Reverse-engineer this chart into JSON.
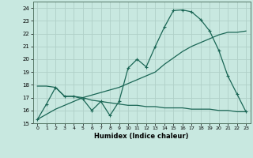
{
  "bg_color": "#c8e8e0",
  "grid_color": "#b0d0c8",
  "line_color": "#1a6655",
  "xlabel": "Humidex (Indice chaleur)",
  "ylim": [
    15,
    24.5
  ],
  "xlim": [
    -0.5,
    23.5
  ],
  "yticks": [
    15,
    16,
    17,
    18,
    19,
    20,
    21,
    22,
    23,
    24
  ],
  "xticks": [
    0,
    1,
    2,
    3,
    4,
    5,
    6,
    7,
    8,
    9,
    10,
    11,
    12,
    13,
    14,
    15,
    16,
    17,
    18,
    19,
    20,
    21,
    22,
    23
  ],
  "line1_x": [
    0,
    1,
    2,
    3,
    4,
    5,
    6,
    7,
    8,
    9,
    10,
    11,
    12,
    13,
    14,
    15,
    16,
    17,
    18,
    19,
    20,
    21,
    22,
    23
  ],
  "line1_y": [
    15.3,
    16.5,
    17.8,
    17.1,
    17.1,
    16.9,
    16.0,
    16.7,
    15.6,
    16.7,
    19.3,
    20.0,
    19.4,
    21.0,
    22.5,
    23.8,
    23.85,
    23.7,
    23.1,
    22.2,
    20.7,
    18.7,
    17.3,
    15.9
  ],
  "line2_x": [
    0,
    1,
    2,
    3,
    4,
    5,
    6,
    7,
    8,
    9,
    10,
    11,
    12,
    13,
    14,
    15,
    16,
    17,
    18,
    19,
    20,
    21,
    22,
    23
  ],
  "line2_y": [
    15.3,
    15.7,
    16.1,
    16.4,
    16.7,
    17.0,
    17.2,
    17.4,
    17.6,
    17.8,
    18.1,
    18.4,
    18.7,
    19.0,
    19.6,
    20.1,
    20.6,
    21.0,
    21.3,
    21.6,
    21.9,
    22.1,
    22.1,
    22.2
  ],
  "line3_x": [
    0,
    1,
    2,
    3,
    4,
    5,
    6,
    7,
    8,
    9,
    10,
    11,
    12,
    13,
    14,
    15,
    16,
    17,
    18,
    19,
    20,
    21,
    22,
    23
  ],
  "line3_y": [
    17.9,
    17.9,
    17.8,
    17.1,
    17.1,
    17.0,
    16.8,
    16.7,
    16.6,
    16.5,
    16.4,
    16.4,
    16.3,
    16.3,
    16.2,
    16.2,
    16.2,
    16.1,
    16.1,
    16.1,
    16.0,
    16.0,
    15.9,
    15.9
  ]
}
